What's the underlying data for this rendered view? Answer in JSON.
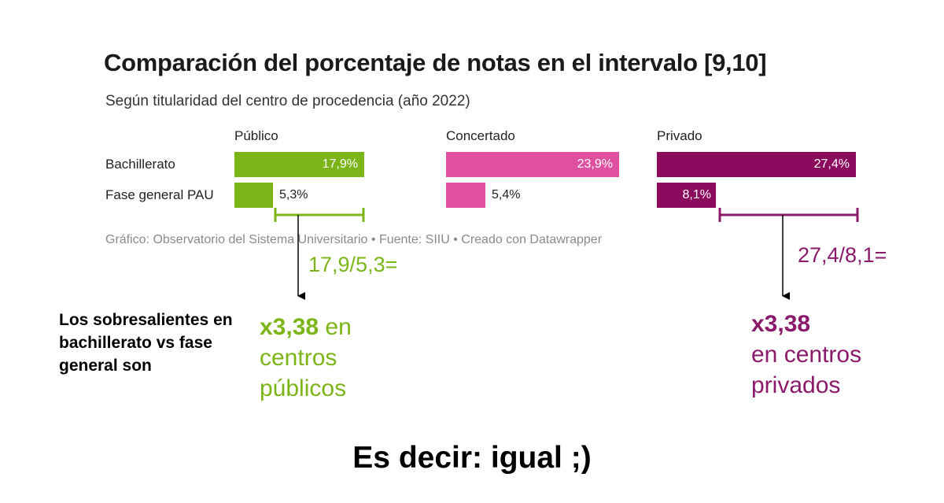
{
  "chart_data": {
    "type": "bar",
    "title": "Comparación del porcentaje de notas en el intervalo [9,10]",
    "subtitle": "Según titularidad del centro de procedencia (año 2022)",
    "categories": [
      "Bachillerato",
      "Fase general PAU"
    ],
    "groups": [
      {
        "name": "Público",
        "color": "#7cb518",
        "values": [
          17.9,
          5.3
        ],
        "labels": [
          "17,9%",
          "5,3%"
        ]
      },
      {
        "name": "Concertado",
        "color": "#e050a0",
        "values": [
          23.9,
          5.4
        ],
        "labels": [
          "23,9%",
          "5,4%"
        ]
      },
      {
        "name": "Privado",
        "color": "#8b0a5e",
        "values": [
          27.4,
          8.1
        ],
        "labels": [
          "27,4%",
          "8,1%"
        ]
      }
    ],
    "footer": "Gráfico: Observatorio del Sistema Universitario • Fuente: SIIU • Creado con Datawrapper"
  },
  "annotations": {
    "calc_publico": "17,9/5,3=",
    "calc_privado": "27,4/8,1=",
    "left_note": "Los sobresalientes en bachillerato vs fase general son",
    "result_publico_bold": "x3,38",
    "result_publico_rest": " en centros públicos",
    "result_privado_bold": "x3,38",
    "result_privado_rest": "en centros privados",
    "conclusion": "Es decir: igual ;)",
    "color_publico": "#7cb518",
    "color_privado": "#8b1a6b"
  }
}
